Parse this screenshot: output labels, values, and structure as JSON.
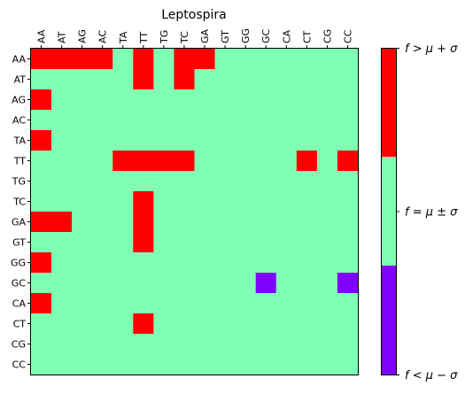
{
  "chart_data": {
    "type": "heatmap",
    "title": "Leptospira",
    "x_labels": [
      "AA",
      "AT",
      "AG",
      "AC",
      "TA",
      "TT",
      "TG",
      "TC",
      "GA",
      "GT",
      "GG",
      "GC",
      "CA",
      "CT",
      "CG",
      "CC"
    ],
    "y_labels": [
      "AA",
      "AT",
      "AG",
      "AC",
      "TA",
      "TT",
      "TG",
      "TC",
      "GA",
      "GT",
      "GG",
      "GC",
      "CA",
      "CT",
      "CG",
      "CC"
    ],
    "value_legend": {
      "-1": "below",
      "0": "within",
      "1": "above"
    },
    "matrix": [
      [
        1,
        1,
        1,
        1,
        0,
        1,
        0,
        1,
        1,
        0,
        0,
        0,
        0,
        0,
        0,
        0
      ],
      [
        0,
        0,
        0,
        0,
        0,
        1,
        0,
        1,
        0,
        0,
        0,
        0,
        0,
        0,
        0,
        0
      ],
      [
        1,
        0,
        0,
        0,
        0,
        0,
        0,
        0,
        0,
        0,
        0,
        0,
        0,
        0,
        0,
        0
      ],
      [
        0,
        0,
        0,
        0,
        0,
        0,
        0,
        0,
        0,
        0,
        0,
        0,
        0,
        0,
        0,
        0
      ],
      [
        1,
        0,
        0,
        0,
        0,
        0,
        0,
        0,
        0,
        0,
        0,
        0,
        0,
        0,
        0,
        0
      ],
      [
        0,
        0,
        0,
        0,
        1,
        1,
        1,
        1,
        0,
        0,
        0,
        0,
        0,
        1,
        0,
        1
      ],
      [
        0,
        0,
        0,
        0,
        0,
        0,
        0,
        0,
        0,
        0,
        0,
        0,
        0,
        0,
        0,
        0
      ],
      [
        0,
        0,
        0,
        0,
        0,
        1,
        0,
        0,
        0,
        0,
        0,
        0,
        0,
        0,
        0,
        0
      ],
      [
        1,
        1,
        0,
        0,
        0,
        1,
        0,
        0,
        0,
        0,
        0,
        0,
        0,
        0,
        0,
        0
      ],
      [
        0,
        0,
        0,
        0,
        0,
        1,
        0,
        0,
        0,
        0,
        0,
        0,
        0,
        0,
        0,
        0
      ],
      [
        1,
        0,
        0,
        0,
        0,
        0,
        0,
        0,
        0,
        0,
        0,
        0,
        0,
        0,
        0,
        0
      ],
      [
        0,
        0,
        0,
        0,
        0,
        0,
        0,
        0,
        0,
        0,
        0,
        -1,
        0,
        0,
        0,
        -1
      ],
      [
        1,
        0,
        0,
        0,
        0,
        0,
        0,
        0,
        0,
        0,
        0,
        0,
        0,
        0,
        0,
        0
      ],
      [
        0,
        0,
        0,
        0,
        0,
        1,
        0,
        0,
        0,
        0,
        0,
        0,
        0,
        0,
        0,
        0
      ],
      [
        0,
        0,
        0,
        0,
        0,
        0,
        0,
        0,
        0,
        0,
        0,
        0,
        0,
        0,
        0,
        0
      ],
      [
        0,
        0,
        0,
        0,
        0,
        0,
        0,
        0,
        0,
        0,
        0,
        0,
        0,
        0,
        0,
        0
      ]
    ],
    "colors": {
      "below": "#8000ff",
      "within": "#80ffb4",
      "above": "#ff0000"
    },
    "colorbar": {
      "labels": [
        "f > μ + σ",
        "f = μ ± σ",
        "f < μ − σ"
      ]
    }
  }
}
